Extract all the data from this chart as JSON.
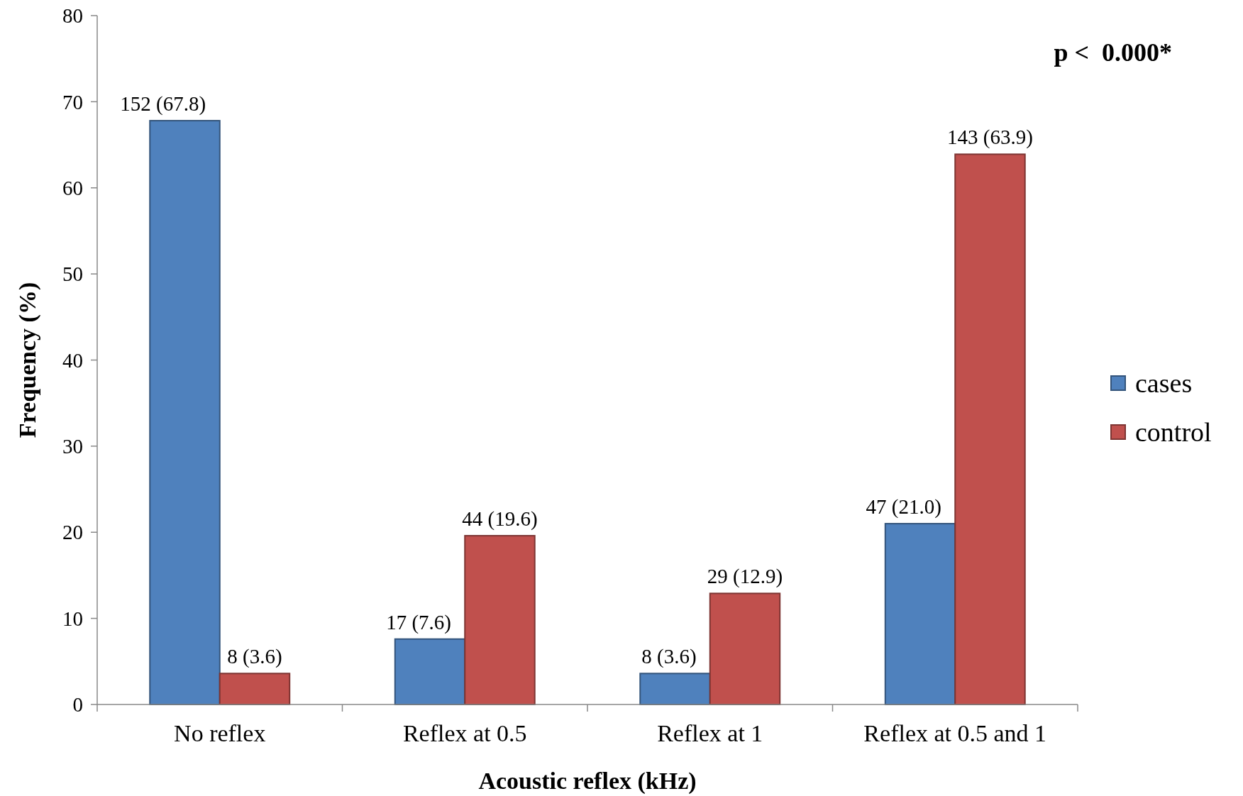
{
  "chart_data": {
    "type": "bar",
    "xlabel": "Acoustic reflex (kHz)",
    "ylabel": "Frequency (%)",
    "categories": [
      "No reflex",
      "Reflex at 0.5",
      "Reflex at 1",
      "Reflex at 0.5 and 1"
    ],
    "series": [
      {
        "name": "cases",
        "color": "#4f81bd",
        "values": [
          67.8,
          7.6,
          3.6,
          21.0
        ],
        "value_labels": [
          "152 (67.8)",
          "17 (7.6)",
          "8 (3.6)",
          "47 (21.0)"
        ]
      },
      {
        "name": "control",
        "color": "#c0504d",
        "values": [
          3.6,
          19.6,
          12.9,
          63.9
        ],
        "value_labels": [
          "8 (3.6)",
          "44 (19.6)",
          "29 (12.9)",
          "143 (63.9)"
        ]
      }
    ],
    "ylim": [
      0,
      80
    ],
    "yticks": [
      0,
      10,
      20,
      30,
      40,
      50,
      60,
      70,
      80
    ],
    "grid": false,
    "legend": "right",
    "annotations": [
      "p <  0.000*"
    ]
  }
}
